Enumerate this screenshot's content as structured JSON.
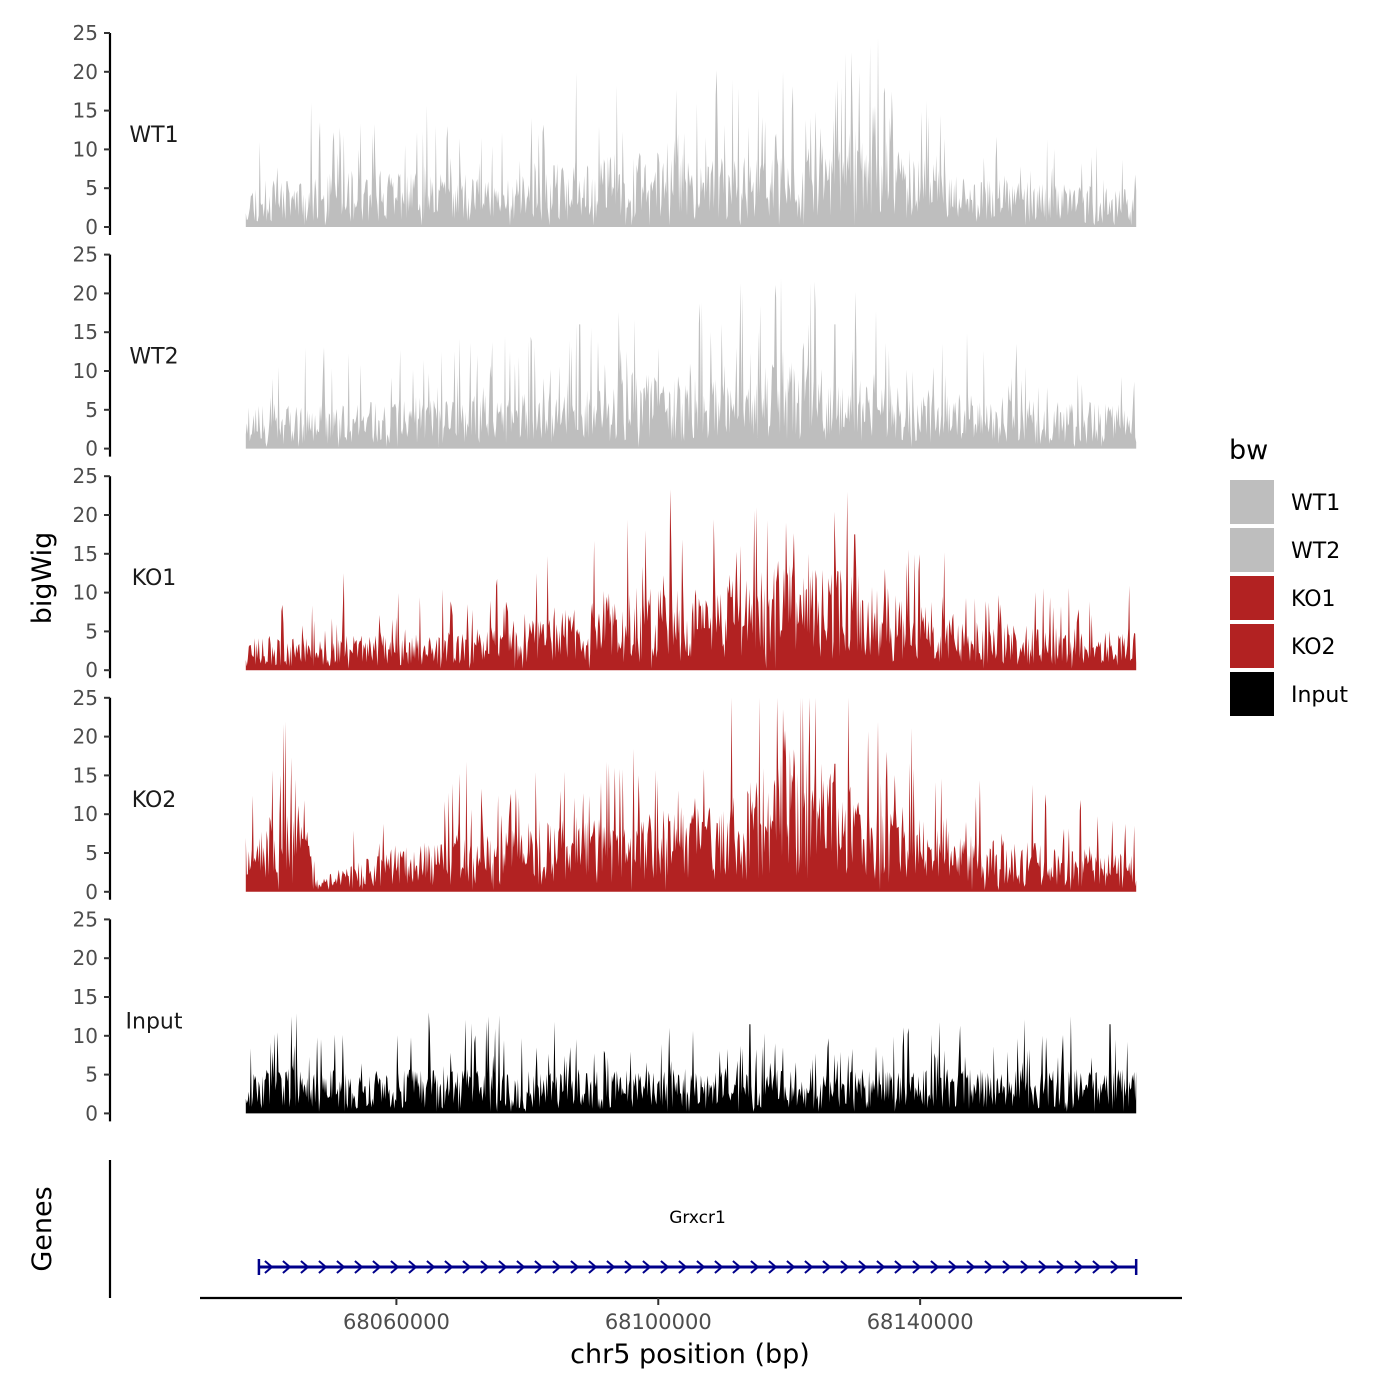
{
  "chart_data": {
    "type": "area",
    "title": "",
    "ylabel": "bigWig",
    "xlabel": "chr5 position (bp)",
    "ylim": [
      0,
      25
    ],
    "y_ticks": [
      "0",
      "5",
      "10",
      "15",
      "20",
      "25"
    ],
    "x_ticks": [
      {
        "value": 68060000,
        "label": "68060000"
      },
      {
        "value": 68100000,
        "label": "68100000"
      },
      {
        "value": 68140000,
        "label": "68140000"
      }
    ],
    "xlim": [
      68030000,
      68180000
    ],
    "x_data_range": [
      68037000,
      68173000
    ],
    "legend": {
      "title": "bw",
      "position": "right",
      "entries": [
        {
          "name": "WT1",
          "color": "#BEBEBE"
        },
        {
          "name": "WT2",
          "color": "#BEBEBE"
        },
        {
          "name": "KO1",
          "color": "#B22222"
        },
        {
          "name": "KO2",
          "color": "#B22222"
        },
        {
          "name": "Input",
          "color": "#000000"
        }
      ]
    },
    "series": [
      {
        "name": "WT1",
        "color": "#BEBEBE",
        "baseline": 3,
        "seed": 11,
        "profile_x": [
          68037000,
          68055000,
          68075000,
          68085000,
          68095000,
          68110000,
          68125000,
          68132000,
          68145000,
          68173000
        ],
        "profile_y": [
          3.5,
          4.5,
          4,
          5,
          6,
          5.5,
          6.5,
          8,
          4,
          3
        ],
        "peaks": [
          [
            68047000,
            16
          ],
          [
            68066000,
            13
          ],
          [
            68091000,
            13
          ],
          [
            68103000,
            12
          ],
          [
            68119000,
            20
          ],
          [
            68129500,
            22.5
          ],
          [
            68128000,
            18
          ]
        ]
      },
      {
        "name": "WT2",
        "color": "#BEBEBE",
        "baseline": 3,
        "seed": 23,
        "profile_x": [
          68037000,
          68060000,
          68085000,
          68095000,
          68110000,
          68120000,
          68130000,
          68150000,
          68173000
        ],
        "profile_y": [
          3.5,
          4,
          4.5,
          6,
          5.5,
          7,
          5.5,
          4,
          3.5
        ],
        "peaks": [
          [
            68042000,
            10.5
          ],
          [
            68088000,
            16
          ],
          [
            68100000,
            13
          ],
          [
            68112000,
            13
          ],
          [
            68118000,
            19.5
          ],
          [
            68123000,
            16
          ],
          [
            68127000,
            16
          ],
          [
            68108000,
            15
          ]
        ]
      },
      {
        "name": "KO1",
        "color": "#B22222",
        "baseline": 2.5,
        "seed": 37,
        "profile_x": [
          68037000,
          68070000,
          68082000,
          68095000,
          68110000,
          68120000,
          68130000,
          68145000,
          68173000
        ],
        "profile_y": [
          2.5,
          3,
          4,
          6.5,
          7,
          9,
          8,
          4,
          3
        ],
        "peaks": [
          [
            68052000,
            12.5
          ],
          [
            68098000,
            18
          ],
          [
            68115000,
            21
          ],
          [
            68119500,
            19
          ],
          [
            68130000,
            17.5
          ],
          [
            68123000,
            15
          ]
        ]
      },
      {
        "name": "KO2",
        "color": "#B22222",
        "baseline": 2.5,
        "seed": 51,
        "profile_x": [
          68037000,
          68042000,
          68046500,
          68047500,
          68060000,
          68085000,
          68100000,
          68110000,
          68120000,
          68130000,
          68145000,
          68173000
        ],
        "profile_y": [
          3,
          7,
          5,
          1,
          3.5,
          6,
          6.5,
          7,
          12,
          8,
          4.5,
          3
        ],
        "peaks": [
          [
            68044500,
            14.5
          ],
          [
            68085000,
            13
          ],
          [
            68097000,
            15
          ],
          [
            68119000,
            23.5
          ],
          [
            68123000,
            17.5
          ],
          [
            68127000,
            16.5
          ],
          [
            68134000,
            14
          ]
        ]
      },
      {
        "name": "Input",
        "color": "#000000",
        "baseline": 3.5,
        "seed": 67,
        "profile_x": [
          68037000,
          68080000,
          68120000,
          68173000
        ],
        "profile_y": [
          3.5,
          3.5,
          3.5,
          3.5
        ],
        "peaks": [
          [
            68044000,
            12.5
          ],
          [
            68065000,
            13
          ],
          [
            68074000,
            12.5
          ],
          [
            68114000,
            11.5
          ],
          [
            68163000,
            12.5
          ],
          [
            68169000,
            11.5
          ]
        ]
      }
    ],
    "genes": {
      "label": "Genes",
      "items": [
        {
          "name": "Grxcr1",
          "start": 68039000,
          "end": 68173000,
          "strand": "+",
          "color": "#00008B"
        }
      ]
    }
  }
}
